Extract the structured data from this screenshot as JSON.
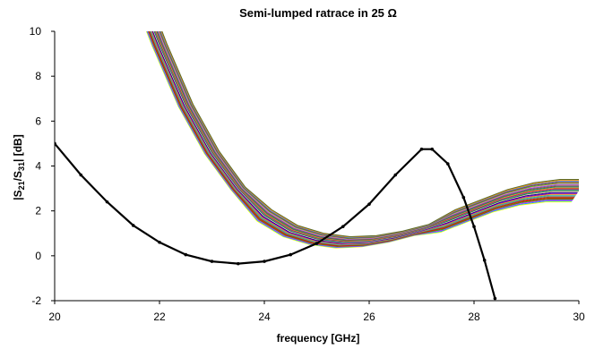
{
  "chart_data": {
    "type": "line",
    "title": "Semi-lumped ratrace in 25 Ω",
    "xlabel": "frequency [GHz]",
    "ylabel": {
      "pre": "|S",
      "sub1": "21",
      "mid": "/S",
      "sub2": "31",
      "post": "| [dB]"
    },
    "xlim": [
      20,
      30
    ],
    "ylim": [
      -2,
      10
    ],
    "x_ticks": [
      "20",
      "22",
      "24",
      "26",
      "28",
      "30"
    ],
    "y_ticks": [
      "-2",
      "0",
      "2",
      "4",
      "6",
      "8",
      "10"
    ],
    "grid": false,
    "legend": "none",
    "measured_series": {
      "color": "#000000",
      "x": [
        20,
        20.5,
        21,
        21.5,
        22,
        22.5,
        23,
        23.5,
        24,
        24.5,
        25,
        25.5,
        26,
        26.5,
        27,
        27.2,
        27.5,
        27.8,
        28,
        28.2,
        28.4
      ],
      "values": [
        5.0,
        3.6,
        2.4,
        1.35,
        0.6,
        0.05,
        -0.25,
        -0.35,
        -0.25,
        0.05,
        0.55,
        1.3,
        2.3,
        3.6,
        4.75,
        4.75,
        4.1,
        2.6,
        1.3,
        -0.2,
        -1.9
      ]
    },
    "simulated_series": {
      "x": [
        21.8,
        22,
        22.5,
        23,
        23.5,
        24,
        24.5,
        25,
        25.5,
        26,
        26.5,
        27,
        27.5,
        28,
        28.5,
        29,
        29.5,
        30
      ],
      "values": [
        10.6,
        9.4,
        6.7,
        4.6,
        3.0,
        1.8,
        1.1,
        0.75,
        0.6,
        0.65,
        0.85,
        1.15,
        1.55,
        2.0,
        2.45,
        2.75,
        2.9,
        2.9
      ]
    },
    "simulated_colors": [
      "#ffff00",
      "#00aaff",
      "#ff00ff",
      "#00cc00",
      "#ff0000",
      "#8b4513",
      "#808080",
      "#20b2aa",
      "#ff9900",
      "#9400d3",
      "#000080",
      "#ffc0cb",
      "#228b22",
      "#4682b4",
      "#dc143c",
      "#daa520",
      "#008080",
      "#a0522d",
      "#6a5acd",
      "#ff69b4",
      "#32cd32",
      "#b22222",
      "#1e90ff",
      "#ff8c00",
      "#556b2f"
    ]
  }
}
